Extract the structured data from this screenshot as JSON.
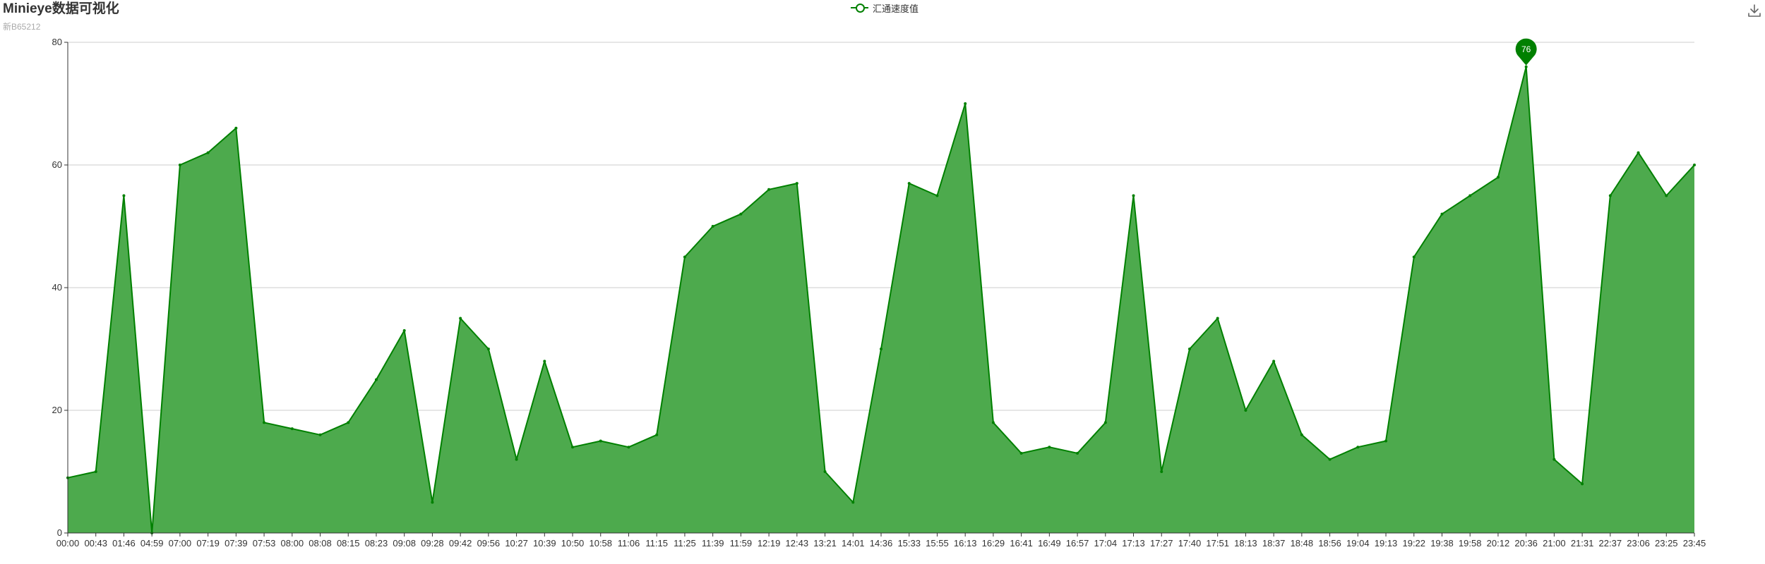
{
  "header": {
    "title": "Minieye数据可视化",
    "subtitle": "新B65212"
  },
  "legend": {
    "label": "汇通速度值"
  },
  "toolbar": {
    "download_icon": "download-icon"
  },
  "colors": {
    "line": "#008000",
    "area": "#4daa4d",
    "grid": "#cccccc",
    "axis": "#333333"
  },
  "chart_data": {
    "type": "area",
    "title": "Minieye数据可视化",
    "subtitle": "新B65212",
    "xlabel": "",
    "ylabel": "",
    "ylim": [
      0,
      80
    ],
    "yticks": [
      0,
      20,
      40,
      60,
      80
    ],
    "grid": true,
    "legend_position": "top-center",
    "series": [
      {
        "name": "汇通速度值",
        "x": [
          "00:00",
          "00:43",
          "01:46",
          "04:59",
          "07:00",
          "07:19",
          "07:39",
          "07:53",
          "08:00",
          "08:08",
          "08:15",
          "08:23",
          "09:08",
          "09:28",
          "09:42",
          "09:56",
          "10:27",
          "10:39",
          "10:50",
          "10:58",
          "11:06",
          "11:15",
          "11:25",
          "11:39",
          "11:59",
          "12:19",
          "12:43",
          "13:21",
          "14:01",
          "14:36",
          "15:33",
          "15:55",
          "16:13",
          "16:29",
          "16:41",
          "16:49",
          "16:57",
          "17:04",
          "17:13",
          "17:27",
          "17:40",
          "17:51",
          "18:13",
          "18:37",
          "18:48",
          "18:56",
          "19:04",
          "19:13",
          "19:22",
          "19:38",
          "19:58",
          "20:12",
          "20:36",
          "21:00",
          "21:31",
          "22:37",
          "23:06",
          "23:25",
          "23:45"
        ],
        "values": [
          9,
          10,
          55,
          0,
          60,
          62,
          66,
          18,
          17,
          16,
          18,
          25,
          33,
          5,
          35,
          30,
          12,
          28,
          14,
          15,
          14,
          16,
          45,
          50,
          52,
          56,
          57,
          10,
          5,
          30,
          57,
          55,
          70,
          18,
          13,
          14,
          13,
          18,
          55,
          10,
          30,
          35,
          20,
          28,
          16,
          12,
          14,
          15,
          45,
          52,
          55,
          58,
          76,
          12,
          8,
          55,
          62,
          55,
          60
        ],
        "max": {
          "label": "76",
          "x": "20:36",
          "value": 76
        }
      }
    ]
  }
}
